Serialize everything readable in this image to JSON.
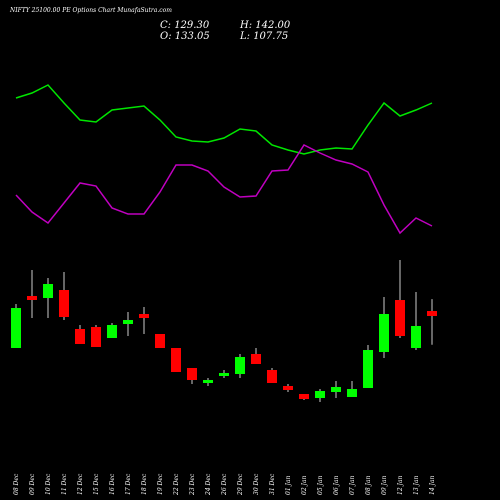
{
  "chart_data": {
    "type": "candlestick",
    "title": "NIFTY 25100.00 PE Options Chart MunafaSutra.com",
    "info": [
      "C: 129.30",
      "H: 142.00",
      "O: 133.05",
      "L: 107.75"
    ],
    "categories": [
      "08 Dec",
      "09 Dec",
      "10 Dec",
      "11 Dec",
      "12 Dec",
      "15 Dec",
      "16 Dec",
      "17 Dec",
      "18 Dec",
      "19 Dec",
      "22 Dec",
      "23 Dec",
      "24 Dec",
      "26 Dec",
      "29 Dec",
      "30 Dec",
      "31 Dec",
      "01 Jan",
      "02 Jan",
      "05 Jan",
      "06 Jan",
      "07 Jan",
      "08 Jan",
      "09 Jan",
      "12 Jan",
      "13 Jan",
      "14 Jan"
    ],
    "open": [
      105.3,
      144.3,
      142.8,
      148.8,
      119.55,
      121.05,
      112.8,
      123.3,
      130.8,
      115.8,
      105.3,
      90.3,
      79.05,
      84.3,
      85.8,
      100.8,
      88.8,
      76.8,
      70.8,
      67.8,
      72.3,
      68.55,
      75.3,
      102.3,
      141.3,
      105.3,
      133.05
    ],
    "close": [
      135.3,
      141.3,
      153.3,
      128.55,
      108.3,
      106.05,
      122.55,
      126.3,
      127.8,
      105.3,
      87.3,
      81.3,
      81.3,
      86.55,
      98.55,
      93.3,
      79.05,
      73.8,
      67.05,
      73.05,
      76.05,
      74.55,
      103.8,
      130.8,
      114.3,
      121.8,
      129.3
    ],
    "high": [
      138.3,
      163.8,
      157.8,
      162.3,
      122.55,
      122.55,
      124.05,
      132.3,
      136.05,
      115.8,
      105.3,
      90.3,
      82.8,
      88.8,
      100.8,
      105.3,
      90.3,
      78.3,
      70.8,
      74.55,
      80.55,
      80.55,
      107.55,
      143.55,
      171.3,
      147.3,
      142
    ],
    "low": [
      105.3,
      127.8,
      127.8,
      126.3,
      108.3,
      106.05,
      112.8,
      114.3,
      115.8,
      105.3,
      87.3,
      78.3,
      76.8,
      82.8,
      82.8,
      93.3,
      79.05,
      72.3,
      66.3,
      64.8,
      67.8,
      68.55,
      75.3,
      97.8,
      112.8,
      103.8,
      107.75
    ],
    "ylim": [
      58.8,
      171.3
    ],
    "up_color": "#00ff00",
    "down_color": "#ff0000",
    "indicator_ylim": [
      40,
      260
    ],
    "indicators": [
      {
        "color": "#00e600",
        "values": [
          202,
          207,
          215,
          197,
          180,
          178,
          190,
          192,
          194,
          180,
          163,
          159,
          158,
          162,
          171,
          169,
          155,
          150,
          146,
          150,
          152,
          151,
          175,
          197,
          184,
          190,
          197
        ]
      },
      {
        "color": "#c000c0",
        "values": [
          105,
          88,
          77,
          97,
          117,
          114,
          92,
          86,
          86,
          108,
          135,
          135,
          129,
          113,
          103,
          104,
          129,
          130,
          155,
          147,
          140,
          136,
          128,
          95,
          67,
          82,
          74
        ]
      }
    ]
  }
}
